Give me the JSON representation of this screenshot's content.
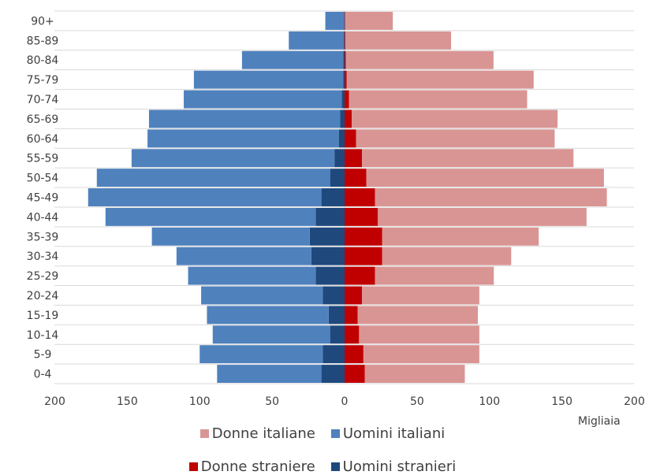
{
  "chart_data": {
    "type": "bar",
    "orientation": "horizontal-diverging",
    "unit_label": "Migliaia",
    "categories": [
      "0-4",
      "5-9",
      "10-14",
      "15-19",
      "20-24",
      "25-29",
      "30-34",
      "35-39",
      "40-44",
      "45-49",
      "50-54",
      "55-59",
      "60-64",
      "65-69",
      "70-74",
      "75-79",
      "80-84",
      "85-89",
      "90+"
    ],
    "series": [
      {
        "name": "Uomini italiani",
        "side": "left",
        "values": [
          72,
          85,
          81,
          84,
          84,
          88,
          93,
          109,
          145,
          161,
          161,
          140,
          132,
          132,
          109,
          103,
          70,
          38,
          13
        ]
      },
      {
        "name": "Uomini stranieri",
        "side": "left",
        "values": [
          16,
          15,
          10,
          11,
          15,
          20,
          23,
          24,
          20,
          16,
          10,
          7,
          4,
          3,
          2,
          1,
          0.8,
          0.5,
          0.3
        ]
      },
      {
        "name": "Donne straniere",
        "side": "right",
        "values": [
          14,
          13,
          10,
          9,
          12,
          21,
          26,
          26,
          23,
          21,
          15,
          12,
          8,
          5,
          3,
          1.5,
          0.8,
          0.5,
          0.3
        ]
      },
      {
        "name": "Donne italiane",
        "side": "right",
        "values": [
          69,
          80,
          83,
          83,
          81,
          82,
          89,
          108,
          144,
          160,
          164,
          146,
          137,
          142,
          123,
          129,
          102,
          73,
          33
        ]
      }
    ],
    "xaxis_ticks": [
      "200",
      "150",
      "100",
      "50",
      "0",
      "50",
      "100",
      "150",
      "200"
    ],
    "xlim": [
      -200,
      200
    ],
    "grid": "horizontal",
    "legend": [
      {
        "label": "Donne italiane",
        "color": "#d99594"
      },
      {
        "label": "Uomini italiani",
        "color": "#4f81bd"
      },
      {
        "label": "Donne straniere",
        "color": "#c00000"
      },
      {
        "label": "Uomini stranieri",
        "color": "#1f497d"
      }
    ],
    "legend_placement": "bottom",
    "colors": {
      "Uomini italiani": "#4f81bd",
      "Uomini stranieri": "#1f497d",
      "Donne straniere": "#c00000",
      "Donne italiane": "#d99594",
      "grid": "#d9d9d9"
    }
  }
}
